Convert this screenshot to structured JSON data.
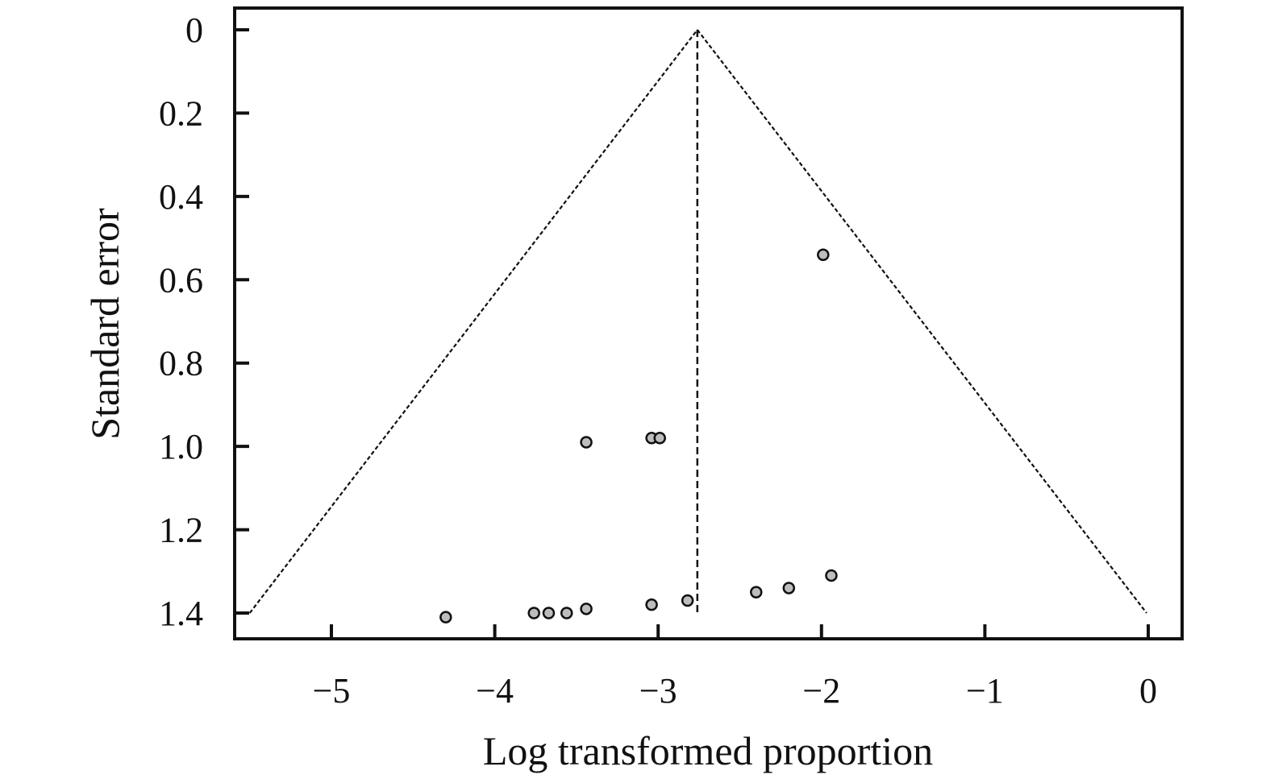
{
  "chart_data": {
    "type": "scatter",
    "title": "",
    "xlabel": "Log transformed proportion",
    "ylabel": "Standard error",
    "xlim": [
      -5.6,
      0.2
    ],
    "ylim": [
      0,
      1.45
    ],
    "y_inverted": true,
    "x_ticks": [
      -5,
      -4,
      -3,
      -2,
      -1,
      0
    ],
    "x_tick_labels": [
      "−5",
      "−4",
      "−3",
      "−2",
      "−1",
      "0"
    ],
    "y_ticks": [
      0,
      0.2,
      0.4,
      0.6,
      0.8,
      1.0,
      1.2,
      1.4
    ],
    "y_tick_labels": [
      "0",
      "0.2",
      "0.4",
      "0.6",
      "0.8",
      "1.0",
      "1.2",
      "1.4"
    ],
    "grid": false,
    "legend": "none",
    "funnel": {
      "center_x": -2.76,
      "apex_se": 0,
      "base_se": 1.4,
      "left_x": -5.5,
      "right_x": -0.01
    },
    "points": [
      {
        "x": -1.99,
        "y": 0.54
      },
      {
        "x": -3.44,
        "y": 0.99
      },
      {
        "x": -3.04,
        "y": 0.98
      },
      {
        "x": -2.99,
        "y": 0.98
      },
      {
        "x": -1.94,
        "y": 1.31
      },
      {
        "x": -2.2,
        "y": 1.34
      },
      {
        "x": -2.4,
        "y": 1.35
      },
      {
        "x": -2.82,
        "y": 1.37
      },
      {
        "x": -3.04,
        "y": 1.38
      },
      {
        "x": -3.44,
        "y": 1.39
      },
      {
        "x": -3.56,
        "y": 1.4
      },
      {
        "x": -3.67,
        "y": 1.4
      },
      {
        "x": -3.76,
        "y": 1.4
      },
      {
        "x": -4.3,
        "y": 1.41
      }
    ],
    "colors": {
      "axis": "#111111",
      "point_fill": "#bdbdbd",
      "point_stroke": "#111111",
      "funnel": "#111111"
    }
  }
}
